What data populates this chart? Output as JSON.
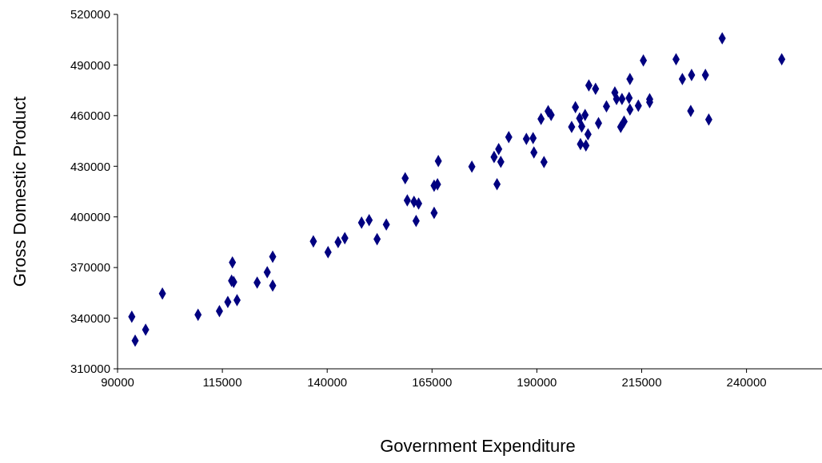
{
  "chart_data": {
    "type": "scatter",
    "xlabel": "Government Expenditure",
    "ylabel": "Gross Domestic Product",
    "x": [
      93400,
      94200,
      96700,
      100700,
      109200,
      114300,
      116300,
      118500,
      117200,
      117700,
      117400,
      123300,
      125700,
      127000,
      127000,
      136700,
      140200,
      142600,
      144200,
      148200,
      150000,
      151900,
      154100,
      158600,
      159100,
      160700,
      161800,
      161200,
      165500,
      165500,
      166300,
      166500,
      174500,
      179800,
      180500,
      180900,
      181400,
      183300,
      187500,
      189100,
      189300,
      191700,
      191000,
      192700,
      193400,
      198300,
      199200,
      200700,
      200200,
      201500,
      200400,
      201700,
      202200,
      202400,
      204000,
      204700,
      206600,
      208600,
      209000,
      210300,
      212000,
      212200,
      212200,
      214200,
      210800,
      210000,
      216900,
      216900,
      215400,
      223200,
      224700,
      226900,
      230200,
      234200,
      248400,
      226700,
      231000
    ],
    "series": [
      {
        "color": "#000080",
        "values": [
          340900,
          326700,
          333200,
          354600,
          342000,
          344200,
          349600,
          350700,
          362200,
          361400,
          373000,
          361100,
          367200,
          376400,
          359300,
          385500,
          379100,
          385100,
          387400,
          396600,
          398100,
          386800,
          395500,
          422900,
          409800,
          409000,
          407900,
          397600,
          402400,
          418500,
          419300,
          433100,
          429800,
          435500,
          419400,
          440200,
          432600,
          447300,
          446200,
          446700,
          438200,
          432500,
          458000,
          462600,
          460400,
          453300,
          465000,
          453600,
          458400,
          460400,
          443100,
          442300,
          448900,
          477900,
          475900,
          455500,
          465500,
          473700,
          469900,
          469900,
          470500,
          481700,
          463600,
          465900,
          456500,
          453300,
          469700,
          468000,
          492700,
          493400,
          481700,
          484100,
          484100,
          505800,
          493400,
          462800,
          457700
        ]
      }
    ],
    "xlim": [
      90000,
      258000
    ],
    "xticks": [
      90000,
      115000,
      140000,
      165000,
      190000,
      215000,
      240000
    ],
    "ylim": [
      310000,
      520000
    ],
    "yticks": [
      310000,
      340000,
      370000,
      400000,
      430000,
      460000,
      490000,
      520000
    ],
    "marker": "diamond",
    "grid": false
  }
}
